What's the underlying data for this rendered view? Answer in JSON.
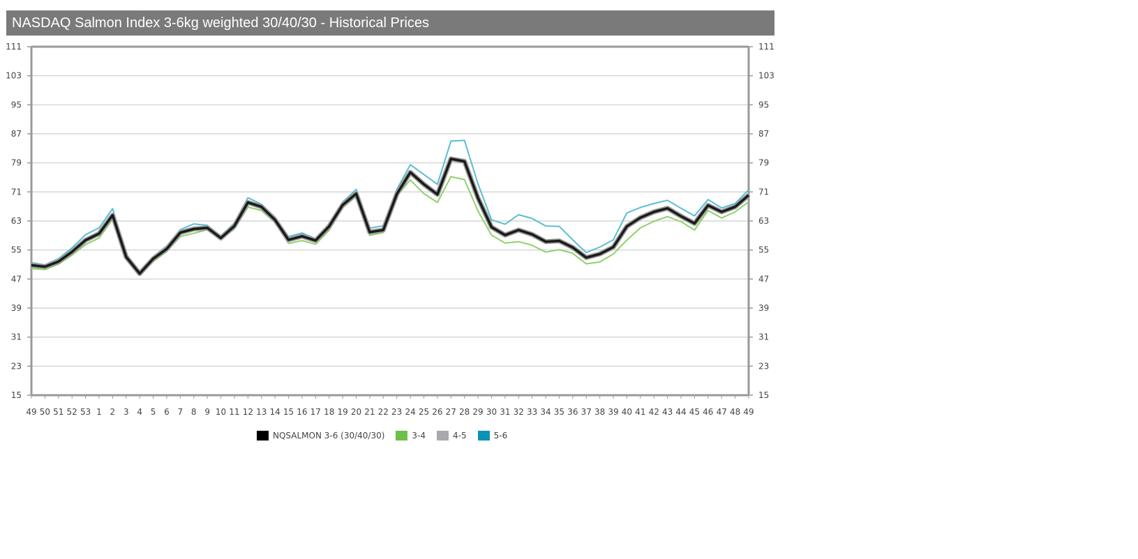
{
  "title": "NASDAQ Salmon Index 3-6kg weighted 30/40/30 - Historical Prices",
  "chart_data": {
    "type": "line",
    "title": "NASDAQ Salmon Index 3-6kg weighted 30/40/30 - Historical Prices",
    "xlabel": "",
    "ylabel": "",
    "ylim": [
      15,
      111
    ],
    "yticks": [
      15,
      23,
      31,
      39,
      47,
      55,
      63,
      71,
      79,
      87,
      95,
      103,
      111
    ],
    "grid": true,
    "legend_position": "bottom-center",
    "categories": [
      "49",
      "50",
      "51",
      "52",
      "53",
      "1",
      "2",
      "3",
      "4",
      "5",
      "6",
      "7",
      "8",
      "9",
      "10",
      "11",
      "12",
      "13",
      "14",
      "15",
      "16",
      "17",
      "18",
      "19",
      "20",
      "21",
      "22",
      "23",
      "24",
      "25",
      "26",
      "27",
      "28",
      "29",
      "30",
      "31",
      "32",
      "33",
      "34",
      "35",
      "36",
      "37",
      "38",
      "39",
      "40",
      "41",
      "42",
      "43",
      "44",
      "45",
      "46",
      "47",
      "48",
      "49"
    ],
    "series": [
      {
        "name": "NQSALMON 3-6 (30/40/30)",
        "color": "#1a1a1a",
        "values": [
          50.8,
          50.4,
          51.8,
          54.5,
          57.7,
          59.5,
          64.6,
          53.1,
          48.5,
          52.6,
          55.3,
          59.8,
          60.8,
          61.1,
          58.3,
          61.6,
          68.1,
          66.9,
          63.3,
          57.8,
          58.8,
          57.6,
          61.5,
          67.4,
          70.5,
          59.9,
          60.5,
          70.4,
          76.4,
          73.1,
          70.3,
          80.1,
          79.4,
          69.3,
          61.3,
          59.1,
          60.5,
          59.3,
          57.3,
          57.5,
          55.7,
          52.9,
          53.9,
          55.8,
          61.5,
          63.9,
          65.5,
          66.5,
          64.3,
          62.3,
          67.3,
          65.5,
          66.9,
          70.1
        ]
      },
      {
        "name": "3-4",
        "color": "#8fd16a",
        "values": [
          49.9,
          49.6,
          51.1,
          53.6,
          56.5,
          58.3,
          63.5,
          52.5,
          48.0,
          51.8,
          54.6,
          58.7,
          59.6,
          60.6,
          57.8,
          60.8,
          66.8,
          65.9,
          62.6,
          56.8,
          57.6,
          56.6,
          60.4,
          66.6,
          69.8,
          59.0,
          59.8,
          69.9,
          74.3,
          70.5,
          68.1,
          75.2,
          74.4,
          65.7,
          59.1,
          56.9,
          57.3,
          56.3,
          54.4,
          55.1,
          54.1,
          51.2,
          51.7,
          53.9,
          57.7,
          61.1,
          62.9,
          64.2,
          62.8,
          60.5,
          65.9,
          63.8,
          65.5,
          68.3
        ]
      },
      {
        "name": "4-5",
        "color": "#a8a8a8",
        "values": [
          51.0,
          50.6,
          52.0,
          54.8,
          58.0,
          59.8,
          64.8,
          53.3,
          48.7,
          52.8,
          55.5,
          60.0,
          61.0,
          61.3,
          58.5,
          61.8,
          68.4,
          67.1,
          63.5,
          58.0,
          59.0,
          57.8,
          61.7,
          67.6,
          70.8,
          60.2,
          60.8,
          70.7,
          76.8,
          73.5,
          70.6,
          80.3,
          79.6,
          69.6,
          61.5,
          59.3,
          60.7,
          59.5,
          57.5,
          57.7,
          55.9,
          53.1,
          54.1,
          56.0,
          61.7,
          64.1,
          65.7,
          66.7,
          64.5,
          62.5,
          67.5,
          65.7,
          67.1,
          70.3
        ]
      },
      {
        "name": "5-6",
        "color": "#5bbdd3",
        "values": [
          51.5,
          50.9,
          52.6,
          55.6,
          59.2,
          61.1,
          66.4,
          53.9,
          49.1,
          53.2,
          56.1,
          60.6,
          62.2,
          61.8,
          58.9,
          62.4,
          69.4,
          67.6,
          64.1,
          58.7,
          59.7,
          58.1,
          62.2,
          68.2,
          71.7,
          61.0,
          61.7,
          71.7,
          78.5,
          75.8,
          73.1,
          85.0,
          85.2,
          73.2,
          63.3,
          62.1,
          64.7,
          63.7,
          61.6,
          61.5,
          57.8,
          54.3,
          55.8,
          57.8,
          65.2,
          66.7,
          67.8,
          68.7,
          66.5,
          64.4,
          68.9,
          66.6,
          67.8,
          71.6
        ]
      }
    ]
  },
  "legend": [
    {
      "label": "NQSALMON 3-6 (30/40/30)",
      "color": "#000000"
    },
    {
      "label": "3-4",
      "color": "#6cc04a"
    },
    {
      "label": "4-5",
      "color": "#a7a9ac"
    },
    {
      "label": "5-6",
      "color": "#0a93b9"
    }
  ]
}
